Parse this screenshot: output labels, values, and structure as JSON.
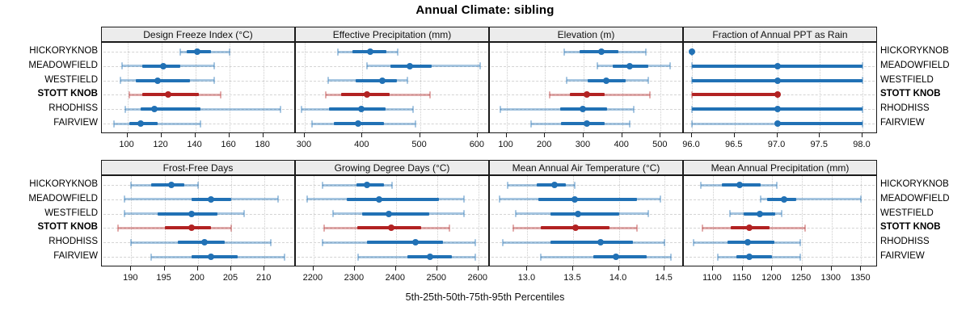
{
  "title": "Annual Climate: sibling",
  "caption": "5th-25th-50th-75th-95th Percentiles",
  "colors": {
    "series_blue": "#2171B5",
    "series_blue_light": "rgba(33,113,181,0.40)",
    "highlight_red": "#B22222",
    "highlight_red_light": "rgba(178,34,34,0.38)",
    "strip_bg": "#ececec",
    "panel_border": "#1a1a1a",
    "gridline": "#cdcdcd"
  },
  "stations": [
    {
      "name": "HICKORYKNOB",
      "highlight": false
    },
    {
      "name": "MEADOWFIELD",
      "highlight": false
    },
    {
      "name": "WESTFIELD",
      "highlight": false
    },
    {
      "name": "STOTT KNOB",
      "highlight": true
    },
    {
      "name": "RHODHISS",
      "highlight": false
    },
    {
      "name": "FAIRVIEW",
      "highlight": false
    }
  ],
  "chart_data": {
    "type": "dotplot-trellis",
    "layout": {
      "rows": 2,
      "cols": 4,
      "grid": "dotted-vertical + dashed-row-guides",
      "legend": "none"
    },
    "percentile_levels": [
      5,
      25,
      50,
      75,
      95
    ],
    "station_order_top_to_bottom": [
      "HICKORYKNOB",
      "MEADOWFIELD",
      "WESTFIELD",
      "STOTT KNOB",
      "RHODHISS",
      "FAIRVIEW"
    ],
    "panels": [
      {
        "title": "Design Freeze Index (°C)",
        "xlim": [
          85,
          199.2
        ],
        "tick_values": [
          100,
          120,
          140,
          160,
          180
        ],
        "tick_labels": [
          "100",
          "120",
          "140",
          "160",
          "180"
        ],
        "percentiles": [
          [
            131,
            135,
            141,
            149,
            160
          ],
          [
            97,
            109,
            121,
            131,
            151
          ],
          [
            96,
            105,
            118,
            137,
            151
          ],
          [
            101,
            109,
            124,
            142,
            155
          ],
          [
            99,
            108,
            116,
            143,
            190
          ],
          [
            92,
            101,
            108,
            118,
            143
          ]
        ]
      },
      {
        "title": "Effective Precipitation (mm)",
        "xlim": [
          284.6,
          621.2
        ],
        "tick_values": [
          300,
          400,
          500,
          600
        ],
        "tick_labels": [
          "300",
          "400",
          "500",
          "600"
        ],
        "percentiles": [
          [
            358,
            383,
            413,
            441,
            462
          ],
          [
            408,
            448,
            483,
            520,
            605
          ],
          [
            340,
            388,
            435,
            460,
            478
          ],
          [
            337,
            363,
            408,
            448,
            517
          ],
          [
            295,
            342,
            398,
            440,
            488
          ],
          [
            313,
            350,
            393,
            438,
            492
          ]
        ]
      },
      {
        "title": "Elevation (m)",
        "xlim": [
          57,
          560
        ],
        "tick_values": [
          100,
          200,
          300,
          400,
          500
        ],
        "tick_labels": [
          "100",
          "200",
          "300",
          "400",
          "500"
        ],
        "percentiles": [
          [
            250,
            290,
            347,
            390,
            462
          ],
          [
            336,
            375,
            419,
            468,
            525
          ],
          [
            257,
            310,
            359,
            410,
            468
          ],
          [
            212,
            265,
            308,
            355,
            471
          ],
          [
            85,
            240,
            297,
            360,
            430
          ],
          [
            163,
            242,
            308,
            355,
            420
          ]
        ]
      },
      {
        "title": "Fraction of Annual PPT as Rain",
        "xlim": [
          95.905,
          98.18
        ],
        "tick_values": [
          96.0,
          96.5,
          97.0,
          97.5,
          98.0
        ],
        "tick_labels": [
          "96.0",
          "96.5",
          "97.0",
          "97.5",
          "98.0"
        ],
        "percentiles": [
          [
            96,
            96,
            96,
            96,
            96
          ],
          [
            96,
            96,
            97,
            98,
            98
          ],
          [
            96,
            96,
            97,
            98,
            98
          ],
          [
            96,
            96,
            97,
            97,
            97
          ],
          [
            96,
            96,
            97,
            98,
            98
          ],
          [
            96,
            97,
            97,
            98,
            98
          ]
        ]
      },
      {
        "title": "Frost-Free Days",
        "xlim": [
          185.6,
          214.7
        ],
        "tick_values": [
          190,
          195,
          200,
          205,
          210
        ],
        "tick_labels": [
          "190",
          "195",
          "200",
          "205",
          "210"
        ],
        "percentiles": [
          [
            190,
            193,
            196,
            198,
            200
          ],
          [
            189,
            199,
            202,
            205,
            212
          ],
          [
            189,
            194,
            199,
            203,
            207
          ],
          [
            188,
            195,
            199,
            202,
            205
          ],
          [
            190,
            197,
            201,
            204,
            211
          ],
          [
            193,
            199,
            202,
            206,
            213
          ]
        ]
      },
      {
        "title": "Growing Degree Days (°C)",
        "xlim": [
          2157,
          2628
        ],
        "tick_values": [
          2200,
          2300,
          2400,
          2500,
          2600
        ],
        "tick_labels": [
          "2200",
          "2300",
          "2400",
          "2500",
          "2600"
        ],
        "percentiles": [
          [
            2222,
            2305,
            2330,
            2370,
            2390
          ],
          [
            2185,
            2280,
            2360,
            2505,
            2565
          ],
          [
            2248,
            2318,
            2382,
            2480,
            2565
          ],
          [
            2225,
            2307,
            2388,
            2462,
            2530
          ],
          [
            2222,
            2330,
            2448,
            2515,
            2592
          ],
          [
            2308,
            2428,
            2482,
            2535,
            2592
          ]
        ]
      },
      {
        "title": "Mean Annual Air Temperature (°C)",
        "xlim": [
          12.59,
          14.71
        ],
        "tick_values": [
          13.0,
          13.5,
          14.0,
          14.5
        ],
        "tick_labels": [
          "13.0",
          "13.5",
          "14.0",
          "14.5"
        ],
        "percentiles": [
          [
            12.78,
            13.1,
            13.3,
            13.42,
            13.52
          ],
          [
            12.7,
            13.12,
            13.52,
            14.2,
            14.45
          ],
          [
            12.87,
            13.25,
            13.55,
            14.0,
            14.32
          ],
          [
            12.85,
            13.15,
            13.53,
            13.9,
            14.2
          ],
          [
            12.73,
            13.25,
            13.8,
            14.15,
            14.5
          ],
          [
            13.15,
            13.72,
            13.97,
            14.3,
            14.57
          ]
        ]
      },
      {
        "title": "Mean Annual Precipitation (mm)",
        "xlim": [
          1051,
          1378
        ],
        "tick_values": [
          1100,
          1150,
          1200,
          1250,
          1300,
          1350
        ],
        "tick_labels": [
          "1100",
          "1150",
          "1200",
          "1250",
          "1300",
          "1350"
        ],
        "percentiles": [
          [
            1080,
            1115,
            1145,
            1180,
            1208
          ],
          [
            1180,
            1192,
            1220,
            1240,
            1350
          ],
          [
            1129,
            1152,
            1179,
            1205,
            1216
          ],
          [
            1082,
            1130,
            1161,
            1195,
            1255
          ],
          [
            1067,
            1125,
            1158,
            1203,
            1247
          ],
          [
            1108,
            1140,
            1162,
            1200,
            1247
          ]
        ]
      }
    ]
  }
}
